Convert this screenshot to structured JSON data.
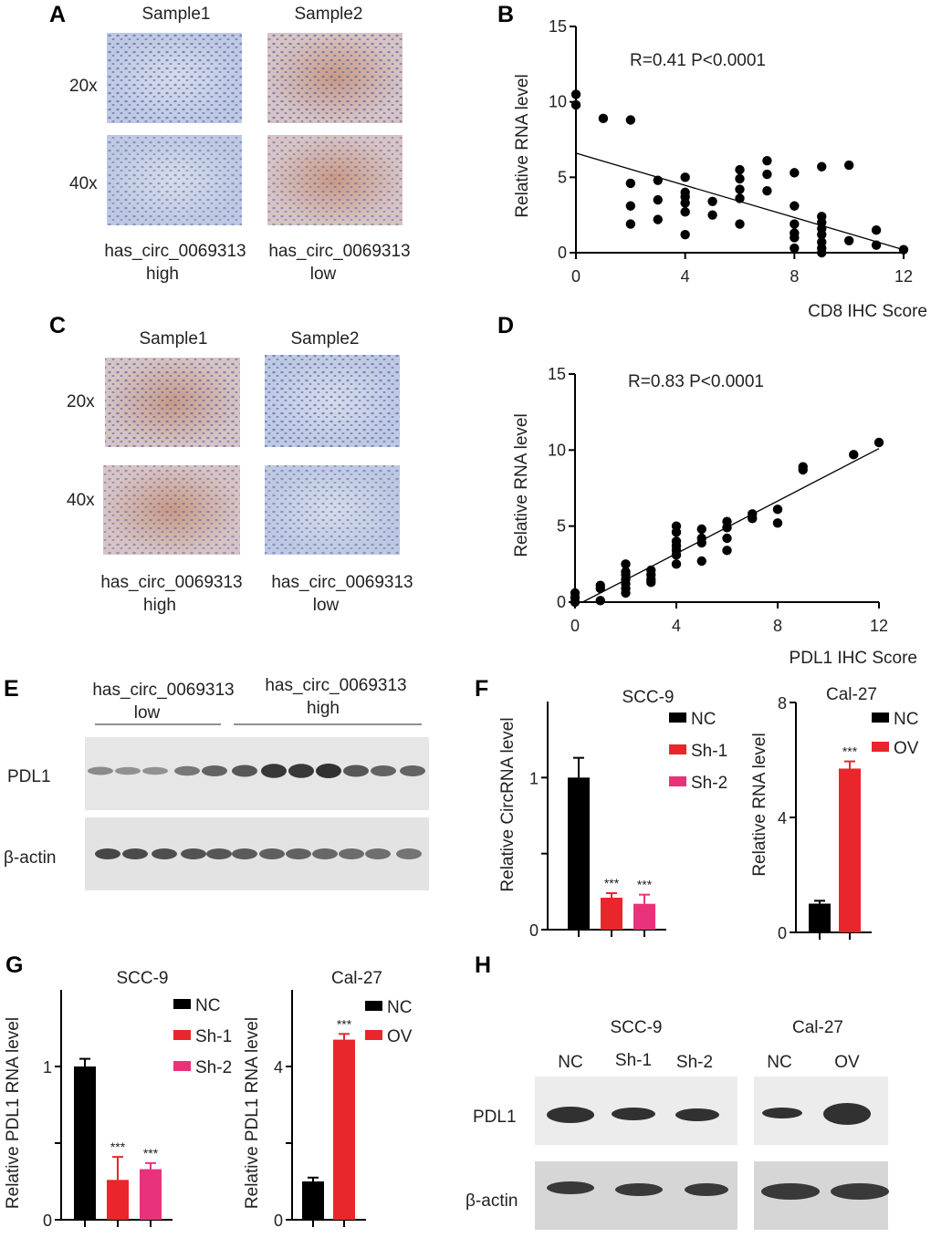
{
  "panels": {
    "A": {
      "letter": "A",
      "col1": "Sample1",
      "col2": "Sample2",
      "row1": "20x",
      "row2": "40x",
      "cap1a": "has_circ_0069313",
      "cap1b": "high",
      "cap2a": "has_circ_0069313",
      "cap2b": "low"
    },
    "C": {
      "letter": "C",
      "col1": "Sample1",
      "col2": "Sample2",
      "row1": "20x",
      "row2": "40x",
      "cap1a": "has_circ_0069313",
      "cap1b": "high",
      "cap2a": "has_circ_0069313",
      "cap2b": "low"
    },
    "E": {
      "letter": "E",
      "grp1a": "has_circ_0069313",
      "grp1b": "low",
      "grp2a": "has_circ_0069313",
      "grp2b": "high",
      "row1": "PDL1",
      "row2": "β-actin"
    },
    "H": {
      "letter": "H",
      "grp1": "SCC-9",
      "grp2": "Cal-27",
      "lanes": [
        "NC",
        "Sh-1",
        "Sh-2",
        "NC",
        "OV"
      ],
      "row1": "PDL1",
      "row2": "β-actin"
    }
  },
  "colors": {
    "nc": "#000000",
    "sh1": "#e8262b",
    "sh2": "#e8337a",
    "ov": "#e8262b",
    "stain_blue": "#c3cde6",
    "stain_brown": "#cfa690"
  },
  "chart_data": [
    {
      "id": "B",
      "letter": "B",
      "type": "scatter",
      "annotation": "R=0.41 P<0.0001",
      "xlabel": "CD8 IHC Score",
      "ylabel": "Relative  RNA level",
      "xlim": [
        0,
        12
      ],
      "ylim": [
        0,
        15
      ],
      "xticks": [
        "0",
        "4",
        "8",
        "12"
      ],
      "yticks": [
        "0",
        "5",
        "10",
        "15"
      ],
      "points": [
        [
          0,
          10.5
        ],
        [
          0,
          9.8
        ],
        [
          1,
          8.9
        ],
        [
          2,
          8.8
        ],
        [
          2,
          4.6
        ],
        [
          2,
          3.1
        ],
        [
          2,
          1.9
        ],
        [
          3,
          4.8
        ],
        [
          3,
          3.5
        ],
        [
          3,
          2.2
        ],
        [
          4,
          5
        ],
        [
          4,
          4
        ],
        [
          4,
          3.7
        ],
        [
          4,
          3.3
        ],
        [
          4,
          2.7
        ],
        [
          4,
          1.2
        ],
        [
          5,
          3.4
        ],
        [
          5,
          2.5
        ],
        [
          6,
          5.5
        ],
        [
          6,
          4.9
        ],
        [
          6,
          4.2
        ],
        [
          6,
          3.6
        ],
        [
          6,
          1.9
        ],
        [
          7,
          6.1
        ],
        [
          7,
          5.2
        ],
        [
          7,
          4.1
        ],
        [
          8,
          5.3
        ],
        [
          8,
          3.1
        ],
        [
          8,
          1.9
        ],
        [
          8,
          1.3
        ],
        [
          8,
          1
        ],
        [
          8,
          0.3
        ],
        [
          9,
          5.7
        ],
        [
          9,
          2.4
        ],
        [
          9,
          2
        ],
        [
          9,
          1.6
        ],
        [
          9,
          1.2
        ],
        [
          9,
          0.7
        ],
        [
          9,
          0.3
        ],
        [
          9,
          0
        ],
        [
          10,
          5.8
        ],
        [
          10,
          0.8
        ],
        [
          11,
          1.5
        ],
        [
          11,
          0.5
        ],
        [
          12,
          0.2
        ]
      ],
      "fit": [
        [
          0,
          6.6
        ],
        [
          12,
          0.2
        ]
      ]
    },
    {
      "id": "D",
      "letter": "D",
      "type": "scatter",
      "annotation": "R=0.83 P<0.0001",
      "xlabel": "PDL1 IHC Score",
      "ylabel": "Relative  RNA level",
      "xlim": [
        0,
        12
      ],
      "ylim": [
        0,
        15
      ],
      "xticks": [
        "0",
        "4",
        "8",
        "12"
      ],
      "yticks": [
        "0",
        "5",
        "10",
        "15"
      ],
      "points": [
        [
          0,
          0.6
        ],
        [
          0,
          0.3
        ],
        [
          0,
          0
        ],
        [
          1,
          1.1
        ],
        [
          1,
          0.9
        ],
        [
          1,
          0.1
        ],
        [
          2,
          2.5
        ],
        [
          2,
          2
        ],
        [
          2,
          1.8
        ],
        [
          2,
          1.5
        ],
        [
          2,
          1.2
        ],
        [
          2,
          0.9
        ],
        [
          2,
          0.6
        ],
        [
          3,
          2.1
        ],
        [
          3,
          1.8
        ],
        [
          3,
          1.5
        ],
        [
          3,
          1.3
        ],
        [
          4,
          5
        ],
        [
          4,
          4.6
        ],
        [
          4,
          4
        ],
        [
          4,
          3.7
        ],
        [
          4,
          3.4
        ],
        [
          4,
          3.1
        ],
        [
          4,
          2.5
        ],
        [
          5,
          4.8
        ],
        [
          5,
          4.2
        ],
        [
          5,
          3.9
        ],
        [
          5,
          2.7
        ],
        [
          6,
          5.3
        ],
        [
          6,
          4.9
        ],
        [
          6,
          4.2
        ],
        [
          6,
          3.4
        ],
        [
          7,
          5.8
        ],
        [
          7,
          5.5
        ],
        [
          8,
          6.1
        ],
        [
          8,
          5.2
        ],
        [
          9,
          8.9
        ],
        [
          9,
          8.7
        ],
        [
          11,
          9.7
        ],
        [
          12,
          10.5
        ]
      ],
      "fit": [
        [
          0.3,
          0
        ],
        [
          12,
          10.1
        ]
      ]
    },
    {
      "id": "F1",
      "letter": "F",
      "type": "bar",
      "title": "SCC-9",
      "ylabel": "Relative CircRNA level",
      "ylim": [
        0,
        1.5
      ],
      "yticks": [
        "0",
        "1"
      ],
      "ytickvals": [
        0,
        0.5,
        1
      ],
      "categories": [
        "NC",
        "Sh-1",
        "Sh-2"
      ],
      "values": [
        1.0,
        0.21,
        0.17
      ],
      "errors": [
        0.13,
        0.03,
        0.06
      ],
      "sig": [
        "",
        "***",
        "***"
      ],
      "legend": [
        "NC",
        "Sh-1",
        "Sh-2"
      ]
    },
    {
      "id": "F2",
      "letter": "",
      "type": "bar",
      "title": "Cal-27",
      "ylabel": "Relative RNA level",
      "ylim": [
        0,
        8
      ],
      "yticks": [
        "0",
        "4",
        "8"
      ],
      "ytickvals": [
        0,
        4,
        8
      ],
      "categories": [
        "NC",
        "OV"
      ],
      "values": [
        1.0,
        5.7
      ],
      "errors": [
        0.1,
        0.25
      ],
      "sig": [
        "",
        "***"
      ],
      "legend": [
        "NC",
        "OV"
      ]
    },
    {
      "id": "G1",
      "letter": "G",
      "type": "bar",
      "title": "SCC-9",
      "ylabel": "Relative PDL1 RNA level",
      "ylim": [
        0,
        1.5
      ],
      "yticks": [
        "0",
        "1"
      ],
      "ytickvals": [
        0,
        0.5,
        1
      ],
      "categories": [
        "NC",
        "Sh-1",
        "Sh-2"
      ],
      "values": [
        1.0,
        0.26,
        0.33
      ],
      "errors": [
        0.05,
        0.15,
        0.04
      ],
      "sig": [
        "",
        "***",
        "***"
      ],
      "legend": [
        "NC",
        "Sh-1",
        "Sh-2"
      ]
    },
    {
      "id": "G2",
      "letter": "",
      "type": "bar",
      "title": "Cal-27",
      "ylabel": "Relative PDL1 RNA level",
      "ylim": [
        0,
        6
      ],
      "yticks": [
        "0",
        "4"
      ],
      "ytickvals": [
        0,
        2,
        4
      ],
      "categories": [
        "NC",
        "OV"
      ],
      "values": [
        1.0,
        4.7
      ],
      "errors": [
        0.1,
        0.15
      ],
      "sig": [
        "",
        "***"
      ],
      "legend": [
        "NC",
        "OV"
      ]
    }
  ]
}
